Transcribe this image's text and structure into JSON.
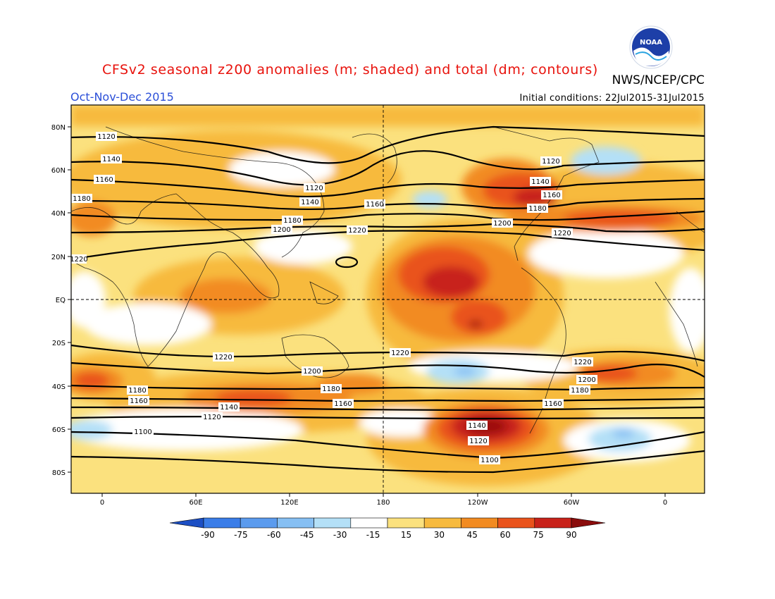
{
  "header": {
    "title": "CFSv2 seasonal z200 anomalies (m; shaded) and total (dm; contours)",
    "agency": "NWS/NCEP/CPC",
    "season": "Oct-Nov-Dec 2015",
    "initial_conditions": "Initial conditions: 22Jul2015-31Jul2015",
    "logo_text": "NOAA",
    "colors": {
      "title": "#e8120c",
      "season": "#2b4fd8"
    }
  },
  "map": {
    "lat_labels": [
      "80N",
      "60N",
      "40N",
      "20N",
      "EQ",
      "20S",
      "40S",
      "60S",
      "80S"
    ],
    "lon_labels": [
      "0",
      "60E",
      "120E",
      "180",
      "120W",
      "60W",
      "0"
    ],
    "contour_labels": [
      "1100",
      "1120",
      "1140",
      "1160",
      "1180",
      "1200",
      "1220"
    ]
  },
  "colorbar": {
    "ticks": [
      "-90",
      "-75",
      "-60",
      "-45",
      "-30",
      "-15",
      "15",
      "30",
      "45",
      "60",
      "75",
      "90"
    ],
    "colors": [
      "#1f5fd6",
      "#3a7de8",
      "#5b9bee",
      "#86bff3",
      "#b4e0f7",
      "#ffffff",
      "#fbe17e",
      "#f7ba3e",
      "#f28b21",
      "#e9531c",
      "#c8221a",
      "#9c0f0f"
    ],
    "left_arrow": "#1c4fc4",
    "right_arrow": "#8a0c0c"
  }
}
